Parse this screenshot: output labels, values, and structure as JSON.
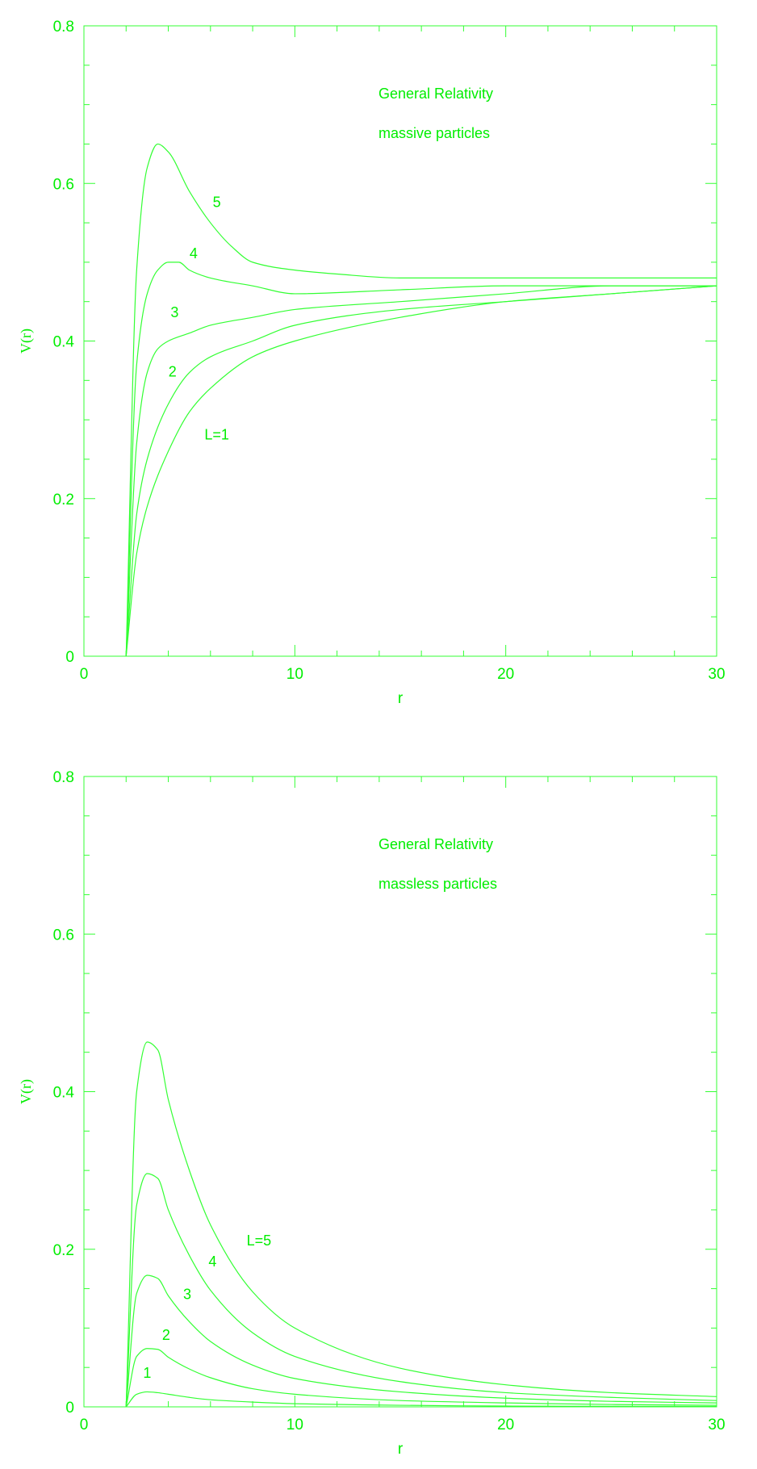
{
  "theme": {
    "line_color": "#33ff33",
    "text_color": "#00ee00"
  },
  "chart_data": [
    {
      "type": "line",
      "title": "",
      "annotations": [
        "General Relativity",
        "massive particles"
      ],
      "xlabel": "r",
      "ylabel": "V(r)",
      "xlim": [
        0,
        30
      ],
      "ylim": [
        0,
        0.8
      ],
      "x_ticks": [
        0,
        10,
        20,
        30
      ],
      "y_ticks": [
        0,
        0.2,
        0.4,
        0.6,
        0.8
      ],
      "x_tick_labels": [
        "0",
        "10",
        "20",
        "30"
      ],
      "y_tick_labels": [
        "0",
        "0.2",
        "0.4",
        "0.6",
        "0.8"
      ],
      "grid": false,
      "legend": "none",
      "series": [
        {
          "name": "L=1",
          "x": [
            2,
            2.5,
            3,
            4,
            5,
            6,
            8,
            10,
            15,
            20,
            25,
            30
          ],
          "values": [
            0,
            0.13,
            0.19,
            0.26,
            0.31,
            0.34,
            0.38,
            0.4,
            0.43,
            0.45,
            0.46,
            0.47
          ]
        },
        {
          "name": "2",
          "x": [
            2,
            2.5,
            3,
            4,
            5,
            6,
            8,
            10,
            15,
            20,
            25,
            30
          ],
          "values": [
            0,
            0.18,
            0.25,
            0.32,
            0.36,
            0.38,
            0.4,
            0.42,
            0.44,
            0.45,
            0.46,
            0.47
          ]
        },
        {
          "name": "3",
          "x": [
            2,
            2.5,
            3,
            3.5,
            4,
            5,
            6,
            8,
            10,
            15,
            20,
            25,
            30
          ],
          "values": [
            0,
            0.27,
            0.36,
            0.39,
            0.4,
            0.41,
            0.42,
            0.43,
            0.44,
            0.45,
            0.46,
            0.47,
            0.47
          ]
        },
        {
          "name": "4",
          "x": [
            2,
            2.5,
            3,
            3.5,
            4,
            4.5,
            5,
            6,
            8,
            10,
            15,
            20,
            25,
            30
          ],
          "values": [
            0,
            0.37,
            0.46,
            0.49,
            0.5,
            0.5,
            0.49,
            0.48,
            0.47,
            0.46,
            0.465,
            0.47,
            0.47,
            0.47
          ]
        },
        {
          "name": "5",
          "x": [
            2,
            2.5,
            3,
            3.5,
            4,
            5,
            6,
            7,
            8,
            10,
            12,
            15,
            20,
            25,
            30
          ],
          "values": [
            0,
            0.49,
            0.62,
            0.65,
            0.64,
            0.59,
            0.55,
            0.52,
            0.5,
            0.49,
            0.485,
            0.48,
            0.48,
            0.48,
            0.48
          ]
        }
      ],
      "labels": [
        {
          "text": "5",
          "x": 6.3,
          "y": 0.57
        },
        {
          "text": "4",
          "x": 5.2,
          "y": 0.505
        },
        {
          "text": "3",
          "x": 4.3,
          "y": 0.43
        },
        {
          "text": "2",
          "x": 4.2,
          "y": 0.355
        },
        {
          "text": "L=1",
          "x": 6.3,
          "y": 0.275
        }
      ]
    },
    {
      "type": "line",
      "title": "",
      "annotations": [
        "General Relativity",
        "massless particles"
      ],
      "xlabel": "r",
      "ylabel": "V(r)",
      "xlim": [
        0,
        30
      ],
      "ylim": [
        0,
        0.8
      ],
      "x_ticks": [
        0,
        10,
        20,
        30
      ],
      "y_ticks": [
        0,
        0.2,
        0.4,
        0.6,
        0.8
      ],
      "x_tick_labels": [
        "0",
        "10",
        "20",
        "30"
      ],
      "y_tick_labels": [
        "0",
        "0.2",
        "0.4",
        "0.6",
        "0.8"
      ],
      "grid": false,
      "legend": "none",
      "series": [
        {
          "name": "1",
          "x": [
            2,
            2.5,
            3,
            3.5,
            4,
            5,
            6,
            8,
            10,
            15,
            20,
            25,
            30
          ],
          "values": [
            0,
            0.016,
            0.019,
            0.018,
            0.016,
            0.012,
            0.009,
            0.006,
            0.004,
            0.002,
            0.001,
            0.0007,
            0.0005
          ]
        },
        {
          "name": "2",
          "x": [
            2,
            2.5,
            3,
            3.5,
            4,
            5,
            6,
            8,
            10,
            15,
            20,
            25,
            30
          ],
          "values": [
            0,
            0.064,
            0.074,
            0.073,
            0.063,
            0.048,
            0.037,
            0.023,
            0.016,
            0.008,
            0.005,
            0.003,
            0.002
          ]
        },
        {
          "name": "3",
          "x": [
            2,
            2.5,
            3,
            3.5,
            4,
            5,
            6,
            8,
            10,
            15,
            20,
            25,
            30
          ],
          "values": [
            0,
            0.144,
            0.167,
            0.163,
            0.141,
            0.108,
            0.083,
            0.053,
            0.036,
            0.019,
            0.011,
            0.007,
            0.005
          ]
        },
        {
          "name": "4",
          "x": [
            2,
            2.5,
            3,
            3.5,
            4,
            5,
            6,
            8,
            10,
            15,
            20,
            25,
            30
          ],
          "values": [
            0,
            0.256,
            0.296,
            0.29,
            0.25,
            0.192,
            0.148,
            0.094,
            0.064,
            0.032,
            0.018,
            0.012,
            0.008
          ]
        },
        {
          "name": "L=5",
          "x": [
            2,
            2.5,
            3,
            3.5,
            4,
            5,
            6,
            8,
            10,
            15,
            20,
            25,
            30
          ],
          "values": [
            0,
            0.4,
            0.463,
            0.453,
            0.39,
            0.3,
            0.231,
            0.146,
            0.1,
            0.049,
            0.028,
            0.018,
            0.013
          ]
        }
      ],
      "labels": [
        {
          "text": "L=5",
          "x": 8.3,
          "y": 0.205
        },
        {
          "text": "4",
          "x": 6.1,
          "y": 0.178
        },
        {
          "text": "3",
          "x": 4.9,
          "y": 0.137
        },
        {
          "text": "2",
          "x": 3.9,
          "y": 0.085
        },
        {
          "text": "1",
          "x": 3.0,
          "y": 0.037
        }
      ]
    }
  ]
}
